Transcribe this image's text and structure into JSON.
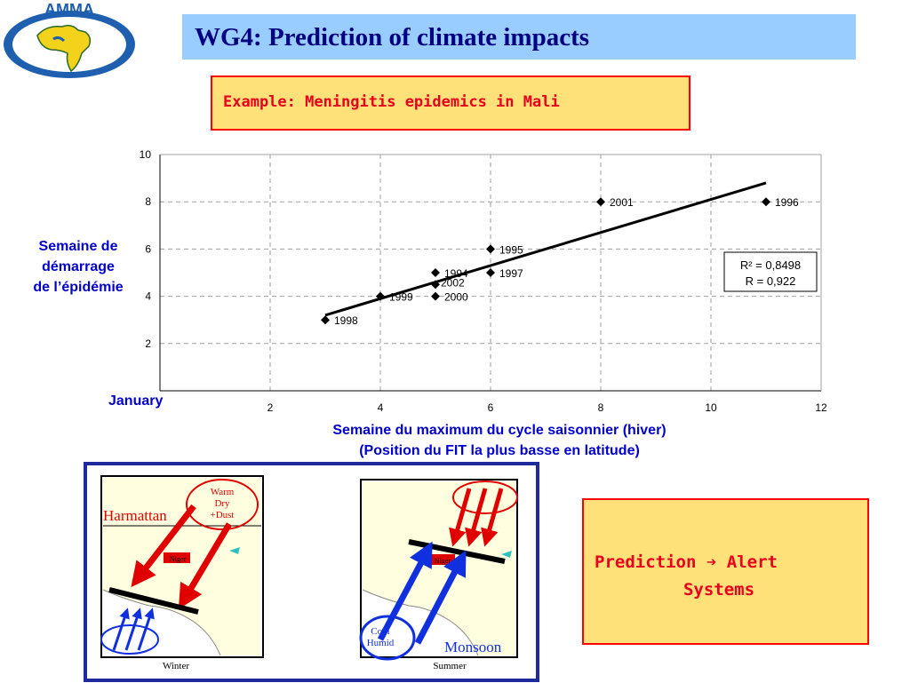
{
  "logo": {
    "text": "AMMA"
  },
  "title": "WG4: Prediction of climate impacts",
  "example": "Example: Meningitis epidemics in Mali",
  "ylabel_lines": [
    "Semaine de",
    "démarrage",
    "de l’épidémie"
  ],
  "january_label": "January",
  "xlabel_lines": [
    "Semaine du maximum du cycle saisonnier (hiver)",
    "(Position du FIT la plus basse en latitude)"
  ],
  "chart_data": {
    "type": "scatter",
    "title": "",
    "xlabel": "Semaine du maximum du cycle saisonnier (hiver) (Position du FIT la plus basse en latitude)",
    "ylabel": "Semaine de démarrage de l’épidémie",
    "xlim": [
      0,
      12
    ],
    "ylim": [
      0,
      10
    ],
    "xticks": [
      2,
      4,
      6,
      8,
      10,
      12
    ],
    "yticks": [
      2,
      4,
      6,
      8,
      10
    ],
    "grid": "dashed",
    "points": [
      {
        "x": 3,
        "y": 3,
        "label": "1998"
      },
      {
        "x": 4,
        "y": 4,
        "label": "1999"
      },
      {
        "x": 5,
        "y": 4,
        "label": "2000"
      },
      {
        "x": 5,
        "y": 5,
        "label": "1994"
      },
      {
        "x": 5,
        "y": 4.5,
        "label": "2002"
      },
      {
        "x": 6,
        "y": 5,
        "label": "1997"
      },
      {
        "x": 6,
        "y": 6,
        "label": "1995"
      },
      {
        "x": 8,
        "y": 8,
        "label": "2001"
      },
      {
        "x": 11,
        "y": 8,
        "label": "1996"
      }
    ],
    "trendline": {
      "x": [
        3,
        11
      ],
      "y": [
        3.2,
        8.8
      ]
    },
    "stats": {
      "r2_label": "R² = 0,8498",
      "r_label": "R = 0,922"
    },
    "colors": {
      "marker": "#000000",
      "grid": "#a0a0a0",
      "axis": "#000000"
    }
  },
  "maps": {
    "winter": {
      "season": "Harmattan",
      "bubble": [
        "Warm",
        "Dry",
        "+Dust"
      ],
      "place": "Niger",
      "caption": "Winter"
    },
    "summer": {
      "season": "Monsoon",
      "bubble": [
        "Cool",
        "Humid"
      ],
      "place": "Niger",
      "caption": "Summer"
    }
  },
  "prediction": {
    "line1_a": "Prediction",
    "arrow": "➔",
    "line1_b": "Alert",
    "line2": "Systems"
  },
  "colors": {
    "title_bg": "#99ccff",
    "title_text": "#000080",
    "box_bg": "#ffe17a",
    "box_border": "#ff0000",
    "label_blue": "#0000cc"
  }
}
